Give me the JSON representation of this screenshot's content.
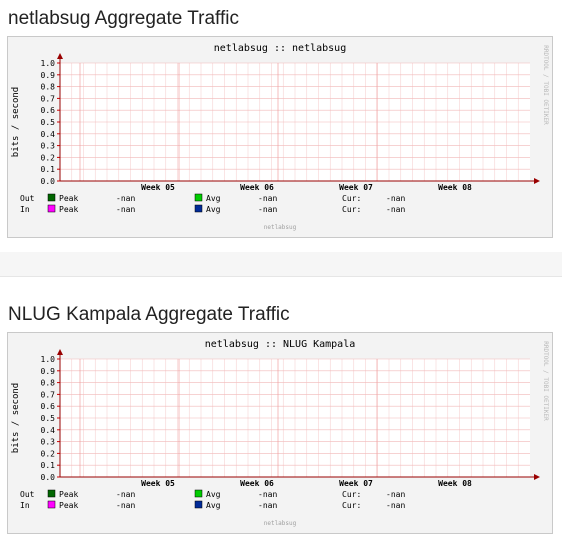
{
  "sections": [
    {
      "heading": "netlabsug Aggregate Traffic",
      "graph": {
        "title": "netlabsug :: netlabsug",
        "ylabel": "bits / second",
        "watermark": "RRDTOOL / TOBI OETIKER",
        "footer": "netlabsug",
        "legend": [
          {
            "dir": "Out",
            "peak_label": "Peak",
            "peak_value": "-nan",
            "avg_label": "Avg",
            "avg_value": "-nan",
            "cur_label": "Cur:",
            "cur_value": "-nan",
            "peak_color": "#006600",
            "avg_color": "#00cc00"
          },
          {
            "dir": "In",
            "peak_label": "Peak",
            "peak_value": "-nan",
            "avg_label": "Avg",
            "avg_value": "-nan",
            "cur_label": "Cur:",
            "cur_value": "-nan",
            "peak_color": "#ff00ff",
            "avg_color": "#002a97"
          }
        ]
      }
    },
    {
      "heading": "NLUG Kampala Aggregate Traffic",
      "graph": {
        "title": "netlabsug :: NLUG Kampala",
        "ylabel": "bits / second",
        "watermark": "RRDTOOL / TOBI OETIKER",
        "footer": "netlabsug",
        "legend": [
          {
            "dir": "Out",
            "peak_label": "Peak",
            "peak_value": "-nan",
            "avg_label": "Avg",
            "avg_value": "-nan",
            "cur_label": "Cur:",
            "cur_value": "-nan",
            "peak_color": "#006600",
            "avg_color": "#00cc00"
          },
          {
            "dir": "In",
            "peak_label": "Peak",
            "peak_value": "-nan",
            "avg_label": "Avg",
            "avg_value": "-nan",
            "cur_label": "Cur:",
            "cur_value": "-nan",
            "peak_color": "#ff00ff",
            "avg_color": "#002a97"
          }
        ]
      }
    }
  ],
  "chart_data": [
    {
      "type": "line",
      "title": "netlabsug :: netlabsug",
      "ylabel": "bits / second",
      "ylim": [
        0,
        1.0
      ],
      "yticks": [
        "1.0",
        "0.9",
        "0.8",
        "0.7",
        "0.6",
        "0.5",
        "0.4",
        "0.3",
        "0.2",
        "0.1",
        "0.0"
      ],
      "xticks": [
        "Week 05",
        "Week 06",
        "Week 07",
        "Week 08"
      ],
      "grid": true,
      "series": [
        {
          "name": "Out",
          "values": []
        },
        {
          "name": "In",
          "values": []
        }
      ]
    },
    {
      "type": "line",
      "title": "netlabsug :: NLUG Kampala",
      "ylabel": "bits / second",
      "ylim": [
        0,
        1.0
      ],
      "yticks": [
        "1.0",
        "0.9",
        "0.8",
        "0.7",
        "0.6",
        "0.5",
        "0.4",
        "0.3",
        "0.2",
        "0.1",
        "0.0"
      ],
      "xticks": [
        "Week 05",
        "Week 06",
        "Week 07",
        "Week 08"
      ],
      "grid": true,
      "series": [
        {
          "name": "Out",
          "values": []
        },
        {
          "name": "In",
          "values": []
        }
      ]
    }
  ]
}
